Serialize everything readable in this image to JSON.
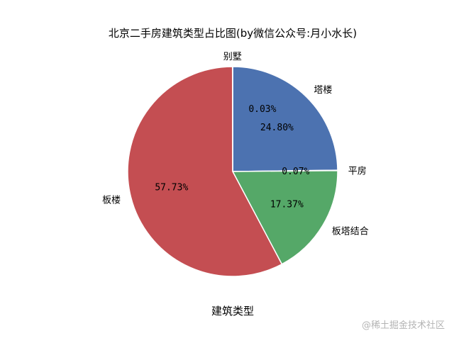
{
  "chart_data": {
    "type": "pie",
    "title": "北京二手房建筑类型占比图(by微信公众号:月小水长)",
    "xlabel": "建筑类型",
    "categories": [
      "塔楼",
      "平房",
      "板塔结合",
      "板楼",
      "别墅"
    ],
    "values": [
      24.8,
      0.07,
      17.37,
      57.73,
      0.03
    ],
    "value_labels": [
      "24.80%",
      "0.07%",
      "17.37%",
      "57.73%",
      "0.03%"
    ],
    "colors": [
      "#4c72b0",
      "#8172b2",
      "#55a868",
      "#c44e52",
      "#ccb974"
    ],
    "start_angle_deg": 90,
    "direction": "clockwise",
    "legend": "none"
  },
  "watermark": "@稀土掘金技术社区"
}
